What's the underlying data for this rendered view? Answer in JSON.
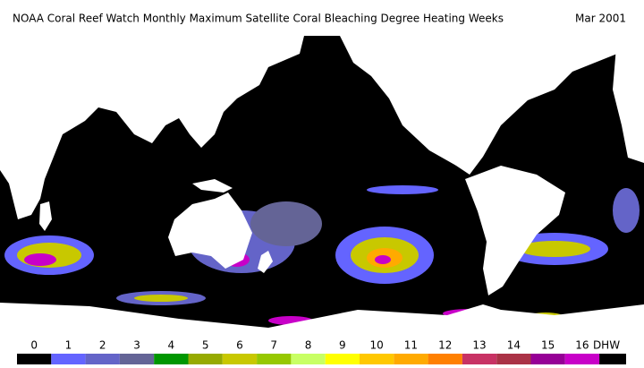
{
  "header": {
    "title": "NOAA Coral Reef Watch Monthly Maximum Satellite Coral Bleaching Degree Heating Weeks",
    "date": "Mar 2001"
  },
  "legend": {
    "unit": "DHW",
    "items": [
      {
        "label": 0,
        "color": "#000000"
      },
      {
        "label": 1,
        "color": "#6464ff"
      },
      {
        "label": 2,
        "color": "#6464c8"
      },
      {
        "label": 3,
        "color": "#646496"
      },
      {
        "label": 4,
        "color": "#009600"
      },
      {
        "label": 5,
        "color": "#96aa00"
      },
      {
        "label": 6,
        "color": "#c8c800"
      },
      {
        "label": 7,
        "color": "#96c800"
      },
      {
        "label": 8,
        "color": "#c8ff64"
      },
      {
        "label": 9,
        "color": "#ffff00"
      },
      {
        "label": 10,
        "color": "#ffc800"
      },
      {
        "label": 11,
        "color": "#ffaa00"
      },
      {
        "label": 12,
        "color": "#ff8000"
      },
      {
        "label": 13,
        "color": "#c83264"
      },
      {
        "label": 14,
        "color": "#aa3246"
      },
      {
        "label": 15,
        "color": "#960096"
      },
      {
        "label": 16,
        "color": "#c800c8"
      }
    ]
  }
}
